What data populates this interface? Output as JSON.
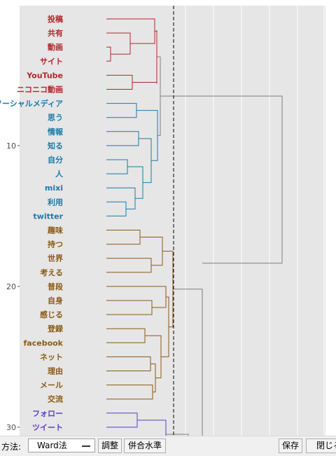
{
  "chart_data": {
    "type": "dendrogram",
    "orientation": "horizontal",
    "y_ticks": [
      10,
      20,
      30
    ],
    "cut_line": "dashed",
    "grid": true,
    "leaves": [
      {
        "label": "投稿",
        "cluster": 1
      },
      {
        "label": "共有",
        "cluster": 1
      },
      {
        "label": "動画",
        "cluster": 1
      },
      {
        "label": "サイト",
        "cluster": 1
      },
      {
        "label": "YouTube",
        "cluster": 1
      },
      {
        "label": "ニコニコ動画",
        "cluster": 1
      },
      {
        "label": "ソーシャルメディア",
        "cluster": 2
      },
      {
        "label": "思う",
        "cluster": 2
      },
      {
        "label": "情報",
        "cluster": 2
      },
      {
        "label": "知る",
        "cluster": 2
      },
      {
        "label": "自分",
        "cluster": 2
      },
      {
        "label": "人",
        "cluster": 2
      },
      {
        "label": "mixi",
        "cluster": 2
      },
      {
        "label": "利用",
        "cluster": 2
      },
      {
        "label": "twitter",
        "cluster": 2
      },
      {
        "label": "趣味",
        "cluster": 3
      },
      {
        "label": "持つ",
        "cluster": 3
      },
      {
        "label": "世界",
        "cluster": 3
      },
      {
        "label": "考える",
        "cluster": 3
      },
      {
        "label": "普段",
        "cluster": 3
      },
      {
        "label": "自身",
        "cluster": 3
      },
      {
        "label": "感じる",
        "cluster": 3
      },
      {
        "label": "登録",
        "cluster": 3
      },
      {
        "label": "facebook",
        "cluster": 3
      },
      {
        "label": "ネット",
        "cluster": 3
      },
      {
        "label": "理由",
        "cluster": 3
      },
      {
        "label": "メール",
        "cluster": 3
      },
      {
        "label": "交流",
        "cluster": 3
      },
      {
        "label": "フォロー",
        "cluster": 4
      },
      {
        "label": "ツイート",
        "cluster": 4
      }
    ],
    "cluster_colors": {
      "1": "#b0282c",
      "2": "#1a7aa8",
      "3": "#8a5a14",
      "4": "#5a3ec8"
    },
    "link_color": "#7f7f7f"
  },
  "toolbar": {
    "method_label": "方法:",
    "method_value": "Ward法",
    "adjust_label": "調整",
    "merge_level_label": "併合水準",
    "save_label": "保存",
    "close_label": "閉じる"
  }
}
